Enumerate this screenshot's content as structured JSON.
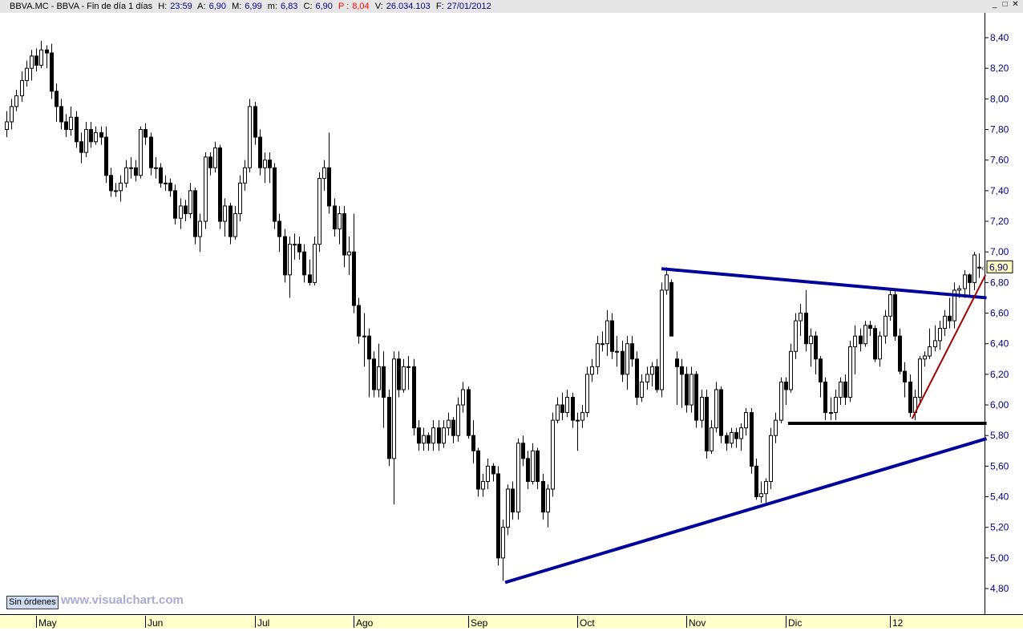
{
  "header": {
    "symbol": "BBVA.MC - BBVA - Fin de día 1 días",
    "hour_label": "H:",
    "hour": "23:59",
    "open_label": "A:",
    "open": "6,90",
    "high_label": "M:",
    "high": "6,99",
    "low_label": "m:",
    "low": "6,83",
    "close_label": "C:",
    "close": "6,90",
    "p_label": "P :",
    "p": "8,04",
    "volume_label": "V:",
    "volume": "26.034.103",
    "date_label": "F:",
    "date": "27/01/2012",
    "window_buttons": [
      "_",
      "□",
      "✕"
    ]
  },
  "footer": {
    "orders_button": "Sin órdenes",
    "watermark": "www.visualchart.com"
  },
  "colors": {
    "up_body": "#ffffff",
    "down_body": "#000000",
    "axis_text": "#000080",
    "trend_blue": "#00009a",
    "trend_red": "#a00000",
    "support": "#000000",
    "last_price_bg": "#ffffc0"
  },
  "chart_data": {
    "type": "candlestick",
    "ylim": [
      4.7,
      8.5
    ],
    "y_ticks": [
      "8,40",
      "8,20",
      "8,00",
      "7,80",
      "7,60",
      "7,40",
      "7,20",
      "7,00",
      "6,80",
      "6,60",
      "6,40",
      "6,20",
      "6,00",
      "5,80",
      "5,60",
      "5,40",
      "5,20",
      "5,00",
      "4,80"
    ],
    "last_price_label": "6,90",
    "x_months": [
      {
        "label": "May",
        "bar": 6
      },
      {
        "label": "Jun",
        "bar": 28
      },
      {
        "label": "Jul",
        "bar": 50
      },
      {
        "label": "Ago",
        "bar": 70
      },
      {
        "label": "Sep",
        "bar": 93
      },
      {
        "label": "Oct",
        "bar": 115
      },
      {
        "label": "Nov",
        "bar": 137
      },
      {
        "label": "Dic",
        "bar": 157
      },
      {
        "label": "12",
        "bar": 178
      }
    ],
    "ohlc": [
      [
        7.8,
        7.92,
        7.75,
        7.85
      ],
      [
        7.85,
        8.0,
        7.8,
        7.95
      ],
      [
        7.95,
        8.06,
        7.92,
        8.02
      ],
      [
        8.02,
        8.18,
        7.98,
        8.12
      ],
      [
        8.12,
        8.25,
        8.08,
        8.2
      ],
      [
        8.2,
        8.32,
        8.12,
        8.28
      ],
      [
        8.28,
        8.33,
        8.18,
        8.22
      ],
      [
        8.22,
        8.38,
        8.2,
        8.32
      ],
      [
        8.32,
        8.35,
        8.2,
        8.3
      ],
      [
        8.3,
        8.36,
        8.0,
        8.05
      ],
      [
        8.05,
        8.1,
        7.85,
        7.95
      ],
      [
        7.95,
        8.0,
        7.8,
        7.85
      ],
      [
        7.85,
        7.9,
        7.75,
        7.8
      ],
      [
        7.8,
        7.95,
        7.76,
        7.88
      ],
      [
        7.88,
        7.92,
        7.68,
        7.72
      ],
      [
        7.72,
        7.78,
        7.58,
        7.65
      ],
      [
        7.65,
        7.85,
        7.62,
        7.8
      ],
      [
        7.8,
        7.85,
        7.68,
        7.72
      ],
      [
        7.72,
        7.82,
        7.7,
        7.78
      ],
      [
        7.78,
        7.82,
        7.7,
        7.75
      ],
      [
        7.75,
        7.82,
        7.45,
        7.5
      ],
      [
        7.5,
        7.55,
        7.36,
        7.4
      ],
      [
        7.4,
        7.45,
        7.36,
        7.4
      ],
      [
        7.4,
        7.5,
        7.33,
        7.45
      ],
      [
        7.45,
        7.6,
        7.42,
        7.55
      ],
      [
        7.55,
        7.62,
        7.48,
        7.55
      ],
      [
        7.55,
        7.6,
        7.46,
        7.5
      ],
      [
        7.5,
        7.82,
        7.48,
        7.8
      ],
      [
        7.8,
        7.84,
        7.7,
        7.75
      ],
      [
        7.75,
        7.78,
        7.5,
        7.55
      ],
      [
        7.55,
        7.62,
        7.48,
        7.55
      ],
      [
        7.55,
        7.58,
        7.42,
        7.45
      ],
      [
        7.45,
        7.5,
        7.4,
        7.45
      ],
      [
        7.45,
        7.48,
        7.36,
        7.4
      ],
      [
        7.4,
        7.44,
        7.18,
        7.22
      ],
      [
        7.22,
        7.35,
        7.15,
        7.3
      ],
      [
        7.3,
        7.34,
        7.2,
        7.25
      ],
      [
        7.25,
        7.45,
        7.22,
        7.4
      ],
      [
        7.4,
        7.42,
        7.05,
        7.1
      ],
      [
        7.1,
        7.25,
        7.0,
        7.2
      ],
      [
        7.2,
        7.65,
        7.15,
        7.62
      ],
      [
        7.62,
        7.65,
        7.5,
        7.55
      ],
      [
        7.55,
        7.72,
        7.52,
        7.68
      ],
      [
        7.68,
        7.7,
        7.15,
        7.2
      ],
      [
        7.2,
        7.35,
        7.1,
        7.3
      ],
      [
        7.3,
        7.32,
        7.05,
        7.1
      ],
      [
        7.1,
        7.3,
        7.08,
        7.25
      ],
      [
        7.25,
        7.5,
        7.2,
        7.45
      ],
      [
        7.45,
        7.6,
        7.4,
        7.55
      ],
      [
        7.55,
        8.0,
        7.52,
        7.95
      ],
      [
        7.95,
        7.98,
        7.7,
        7.75
      ],
      [
        7.75,
        7.8,
        7.5,
        7.55
      ],
      [
        7.55,
        7.65,
        7.45,
        7.6
      ],
      [
        7.6,
        7.65,
        7.45,
        7.55
      ],
      [
        7.55,
        7.58,
        7.15,
        7.2
      ],
      [
        7.2,
        7.25,
        7.0,
        7.1
      ],
      [
        7.1,
        7.15,
        6.8,
        6.85
      ],
      [
        6.85,
        7.1,
        6.7,
        7.05
      ],
      [
        7.05,
        7.12,
        6.95,
        7.05
      ],
      [
        7.05,
        7.1,
        6.95,
        7.0
      ],
      [
        7.0,
        7.05,
        6.8,
        6.85
      ],
      [
        6.85,
        6.95,
        6.78,
        6.8
      ],
      [
        6.8,
        7.1,
        6.78,
        7.05
      ],
      [
        7.05,
        7.52,
        7.0,
        7.48
      ],
      [
        7.48,
        7.6,
        7.4,
        7.55
      ],
      [
        7.55,
        7.78,
        7.25,
        7.3
      ],
      [
        7.3,
        7.35,
        7.1,
        7.15
      ],
      [
        7.15,
        7.3,
        7.05,
        7.25
      ],
      [
        7.25,
        7.3,
        6.9,
        6.98
      ],
      [
        6.98,
        7.1,
        6.85,
        7.0
      ],
      [
        7.0,
        7.25,
        6.6,
        6.65
      ],
      [
        6.65,
        6.7,
        6.4,
        6.45
      ],
      [
        6.45,
        6.6,
        6.25,
        6.45
      ],
      [
        6.45,
        6.5,
        6.05,
        6.3
      ],
      [
        6.3,
        6.35,
        6.05,
        6.1
      ],
      [
        6.1,
        6.4,
        6.05,
        6.25
      ],
      [
        6.25,
        6.35,
        5.85,
        6.05
      ],
      [
        6.05,
        6.1,
        5.6,
        5.65
      ],
      [
        5.65,
        6.35,
        5.35,
        6.3
      ],
      [
        6.3,
        6.35,
        6.05,
        6.1
      ],
      [
        6.1,
        6.3,
        6.08,
        6.25
      ],
      [
        6.25,
        6.32,
        6.1,
        6.25
      ],
      [
        6.25,
        6.3,
        5.8,
        5.85
      ],
      [
        5.85,
        5.9,
        5.7,
        5.75
      ],
      [
        5.75,
        5.85,
        5.7,
        5.8
      ],
      [
        5.8,
        5.82,
        5.7,
        5.75
      ],
      [
        5.75,
        5.9,
        5.7,
        5.85
      ],
      [
        5.85,
        5.9,
        5.7,
        5.75
      ],
      [
        5.75,
        5.9,
        5.72,
        5.85
      ],
      [
        5.85,
        5.95,
        5.8,
        5.9
      ],
      [
        5.9,
        5.92,
        5.75,
        5.8
      ],
      [
        5.8,
        6.05,
        5.76,
        6.0
      ],
      [
        6.0,
        6.15,
        5.95,
        6.1
      ],
      [
        6.1,
        6.12,
        5.78,
        5.8
      ],
      [
        5.8,
        5.9,
        5.62,
        5.7
      ],
      [
        5.7,
        5.72,
        5.4,
        5.45
      ],
      [
        5.45,
        5.55,
        5.4,
        5.5
      ],
      [
        5.5,
        5.65,
        5.45,
        5.6
      ],
      [
        5.6,
        5.62,
        5.5,
        5.55
      ],
      [
        5.55,
        5.6,
        4.95,
        5.0
      ],
      [
        5.0,
        5.25,
        4.85,
        5.2
      ],
      [
        5.2,
        5.48,
        5.15,
        5.45
      ],
      [
        5.45,
        5.5,
        5.25,
        5.3
      ],
      [
        5.3,
        5.78,
        5.25,
        5.75
      ],
      [
        5.75,
        5.8,
        5.6,
        5.65
      ],
      [
        5.65,
        5.7,
        5.45,
        5.5
      ],
      [
        5.5,
        5.75,
        5.48,
        5.7
      ],
      [
        5.7,
        5.72,
        5.45,
        5.5
      ],
      [
        5.5,
        5.55,
        5.25,
        5.3
      ],
      [
        5.3,
        5.48,
        5.2,
        5.45
      ],
      [
        5.45,
        5.95,
        5.4,
        5.9
      ],
      [
        5.9,
        6.05,
        5.88,
        6.0
      ],
      [
        6.0,
        6.08,
        5.9,
        5.95
      ],
      [
        5.95,
        6.1,
        5.92,
        6.05
      ],
      [
        6.05,
        6.08,
        5.85,
        5.9
      ],
      [
        5.9,
        5.95,
        5.7,
        5.9
      ],
      [
        5.9,
        6.0,
        5.85,
        5.95
      ],
      [
        5.95,
        6.25,
        5.92,
        6.2
      ],
      [
        6.2,
        6.3,
        6.15,
        6.25
      ],
      [
        6.25,
        6.45,
        6.2,
        6.4
      ],
      [
        6.4,
        6.48,
        6.35,
        6.4
      ],
      [
        6.4,
        6.62,
        6.32,
        6.55
      ],
      [
        6.55,
        6.6,
        6.3,
        6.35
      ],
      [
        6.35,
        6.45,
        6.25,
        6.35
      ],
      [
        6.35,
        6.42,
        6.15,
        6.2
      ],
      [
        6.2,
        6.45,
        6.1,
        6.4
      ],
      [
        6.4,
        6.45,
        6.25,
        6.3
      ],
      [
        6.3,
        6.35,
        6.0,
        6.05
      ],
      [
        6.05,
        6.2,
        6.02,
        6.15
      ],
      [
        6.15,
        6.25,
        6.1,
        6.2
      ],
      [
        6.2,
        6.28,
        6.12,
        6.25
      ],
      [
        6.25,
        6.3,
        6.08,
        6.1
      ],
      [
        6.1,
        6.8,
        6.05,
        6.75
      ],
      [
        6.75,
        6.9,
        6.72,
        6.85
      ],
      [
        6.8,
        6.82,
        6.45,
        6.45
      ],
      [
        6.3,
        6.35,
        6.0,
        6.25
      ],
      [
        6.25,
        6.3,
        5.98,
        6.2
      ],
      [
        6.2,
        6.25,
        5.95,
        6.0
      ],
      [
        6.0,
        6.25,
        5.95,
        6.2
      ],
      [
        6.2,
        6.22,
        5.85,
        5.9
      ],
      [
        5.9,
        6.1,
        5.85,
        6.05
      ],
      [
        6.05,
        6.1,
        5.65,
        5.7
      ],
      [
        5.7,
        5.9,
        5.68,
        5.85
      ],
      [
        5.85,
        6.15,
        5.82,
        6.1
      ],
      [
        6.1,
        6.12,
        5.75,
        5.8
      ],
      [
        5.8,
        5.82,
        5.7,
        5.75
      ],
      [
        5.75,
        5.85,
        5.72,
        5.82
      ],
      [
        5.82,
        5.85,
        5.72,
        5.78
      ],
      [
        5.78,
        5.88,
        5.7,
        5.85
      ],
      [
        5.85,
        5.98,
        5.8,
        5.95
      ],
      [
        5.95,
        5.98,
        5.55,
        5.6
      ],
      [
        5.6,
        5.65,
        5.38,
        5.4
      ],
      [
        5.4,
        5.5,
        5.36,
        5.42
      ],
      [
        5.42,
        5.52,
        5.36,
        5.5
      ],
      [
        5.5,
        5.85,
        5.45,
        5.8
      ],
      [
        5.8,
        5.95,
        5.75,
        5.9
      ],
      [
        5.9,
        6.18,
        5.88,
        6.15
      ],
      [
        6.15,
        6.18,
        6.0,
        6.1
      ],
      [
        6.1,
        6.4,
        6.08,
        6.35
      ],
      [
        6.35,
        6.6,
        6.3,
        6.55
      ],
      [
        6.55,
        6.66,
        6.45,
        6.6
      ],
      [
        6.6,
        6.75,
        6.35,
        6.4
      ],
      [
        6.4,
        6.5,
        6.25,
        6.45
      ],
      [
        6.45,
        6.48,
        6.2,
        6.3
      ],
      [
        6.3,
        6.32,
        6.05,
        6.15
      ],
      [
        6.15,
        6.18,
        5.9,
        5.95
      ],
      [
        5.95,
        6.05,
        5.9,
        5.95
      ],
      [
        5.95,
        6.1,
        5.9,
        6.05
      ],
      [
        6.05,
        6.18,
        6.0,
        6.15
      ],
      [
        6.15,
        6.2,
        6.0,
        6.05
      ],
      [
        6.05,
        6.42,
        6.02,
        6.38
      ],
      [
        6.38,
        6.52,
        6.2,
        6.45
      ],
      [
        6.45,
        6.5,
        6.35,
        6.4
      ],
      [
        6.4,
        6.55,
        6.38,
        6.52
      ],
      [
        6.52,
        6.55,
        6.45,
        6.5
      ],
      [
        6.5,
        6.52,
        6.28,
        6.3
      ],
      [
        6.3,
        6.48,
        6.25,
        6.45
      ],
      [
        6.45,
        6.62,
        6.4,
        6.58
      ],
      [
        6.58,
        6.76,
        6.55,
        6.72
      ],
      [
        6.72,
        6.75,
        6.42,
        6.45
      ],
      [
        6.45,
        6.5,
        6.2,
        6.22
      ],
      [
        6.22,
        6.28,
        6.05,
        6.15
      ],
      [
        6.15,
        6.2,
        5.92,
        5.95
      ],
      [
        5.95,
        6.1,
        5.9,
        6.05
      ],
      [
        6.05,
        6.32,
        6.0,
        6.3
      ],
      [
        6.3,
        6.35,
        6.25,
        6.32
      ],
      [
        6.32,
        6.5,
        6.3,
        6.38
      ],
      [
        6.38,
        6.52,
        6.35,
        6.42
      ],
      [
        6.42,
        6.55,
        6.36,
        6.5
      ],
      [
        6.5,
        6.62,
        6.45,
        6.58
      ],
      [
        6.58,
        6.7,
        6.5,
        6.55
      ],
      [
        6.55,
        6.8,
        6.5,
        6.75
      ],
      [
        6.75,
        6.78,
        6.7,
        6.76
      ],
      [
        6.76,
        6.88,
        6.7,
        6.85
      ],
      [
        6.85,
        6.86,
        6.7,
        6.8
      ],
      [
        6.8,
        7.0,
        6.75,
        6.98
      ],
      [
        6.9,
        6.99,
        6.83,
        6.9
      ]
    ],
    "trendlines": [
      {
        "kind": "resistance",
        "color": "#00009a",
        "from": [
          132,
          6.89
        ],
        "to": [
          197.5,
          6.7
        ]
      },
      {
        "kind": "support",
        "color": "#00009a",
        "from": [
          100.5,
          4.84
        ],
        "to": [
          197.5,
          5.78
        ]
      },
      {
        "kind": "horizontal",
        "color": "#000000",
        "from": [
          157.5,
          5.88
        ],
        "to": [
          197.5,
          5.88
        ]
      },
      {
        "kind": "uptrend",
        "color": "#a00000",
        "from": [
          182.5,
          5.91
        ],
        "to": [
          197.3,
          6.85
        ]
      }
    ]
  }
}
